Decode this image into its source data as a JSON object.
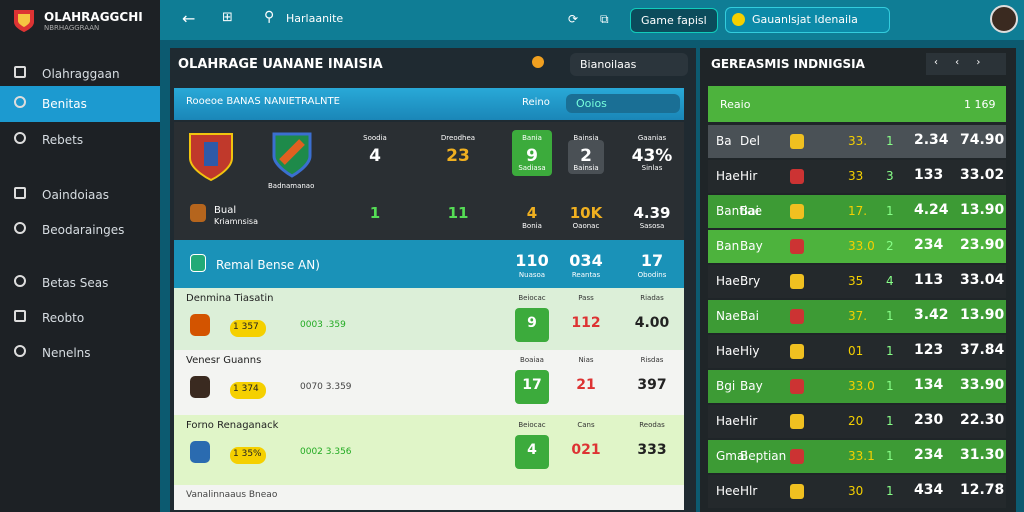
{
  "sidebar": {
    "brand": "OLAHRAGGCHI",
    "tagline": "NBRHAGGRAAN",
    "nav": [
      "Olahraggaan",
      "Benitas",
      "Rebets",
      "Oaindoiaas",
      "Beodarainges",
      "Betas Seas",
      "Reobto",
      "Nenelns"
    ]
  },
  "topbar": {
    "search": "Harlaanite",
    "game_button": "Game fapisl",
    "account_button": "Gauanlsjat Idenaila"
  },
  "main": {
    "title": "OLAHRAGE UANANE INAISIA",
    "dropdown": "Bianoilaas",
    "header": {
      "left": "Rooeoe BANAS NANIETRALNTE",
      "right": "Reino",
      "search": "Ooios"
    },
    "match": {
      "team_caption": "Badnamanao",
      "small_team": "Bual",
      "small_team_sub": "Kriamnsisa",
      "stats": [
        {
          "label": "Soodia",
          "value": "4"
        },
        {
          "label": "Dreodhea",
          "value": "23"
        },
        {
          "label": "Bania",
          "value": "9",
          "sub": "Sadiasa"
        },
        {
          "label": "Bainsia",
          "value": "2",
          "sub": "Bainsia"
        },
        {
          "label": "Gaanias",
          "value": "43%",
          "sub": "Sinlas"
        }
      ],
      "stats2": [
        {
          "value": "1"
        },
        {
          "value": "11"
        },
        {
          "value": "4",
          "sub": "Bonia"
        },
        {
          "value": "10K",
          "sub": "Oaonac"
        },
        {
          "value": "4.39",
          "sub": "Sasosa"
        }
      ]
    },
    "summary": {
      "name": "Remal Bense AN)",
      "values": [
        "110",
        "034",
        "17"
      ],
      "subs": [
        "Nuasoa",
        "Reantas",
        "Obodins"
      ]
    },
    "rows": [
      {
        "title": "Denmina Tiasatin",
        "odds": "1 357",
        "pick": "0003 .359",
        "labels": [
          "Beiocac",
          "Pass",
          "Riadas"
        ],
        "values": [
          "9",
          "112",
          "4.00"
        ]
      },
      {
        "title": "Venesr Guanns",
        "odds": "1 374",
        "pick": "0070 3.359",
        "labels": [
          "Boaiaa",
          "Nias",
          "Risdas"
        ],
        "values": [
          "17",
          "21",
          "397"
        ]
      },
      {
        "title": "Forno Renaganack",
        "odds": "1 35%",
        "pick": "0002 3.356",
        "labels": [
          "Beiocac",
          "Cans",
          "Reodas"
        ],
        "values": [
          "4",
          "021",
          "333"
        ]
      }
    ],
    "footer": "Vanalinnaaus Bneao"
  },
  "right": {
    "title": "GEREASMIS INDNIGSIA",
    "header_left": "Reaio",
    "header_right": "1 169",
    "rows": [
      [
        "Ba",
        "Del",
        "33.",
        "1",
        "2.34",
        "74.90"
      ],
      [
        "Hae",
        "Hir",
        "33",
        "3",
        "133",
        "33.02"
      ],
      [
        "Bantiae",
        "Bai",
        "17.",
        "1",
        "4.24",
        "13.90"
      ],
      [
        "Ban",
        "Bay",
        "33.0",
        "2",
        "234",
        "23.90"
      ],
      [
        "Hae",
        "Bry",
        "35",
        "4",
        "113",
        "33.04"
      ],
      [
        "Nae",
        "Bai",
        "37.",
        "1",
        "3.42",
        "13.90"
      ],
      [
        "Hae",
        "Hiy",
        "01",
        "1",
        "123",
        "37.84"
      ],
      [
        "Bgi",
        "Bay",
        "33.0",
        "1",
        "134",
        "33.90"
      ],
      [
        "Hae",
        "Hir",
        "20",
        "1",
        "230",
        "22.30"
      ],
      [
        "Gmal",
        "Beptian",
        "33.1",
        "1",
        "234",
        "31.30"
      ],
      [
        "Hee",
        "Hlr",
        "30",
        "1",
        "434",
        "12.78"
      ]
    ]
  }
}
